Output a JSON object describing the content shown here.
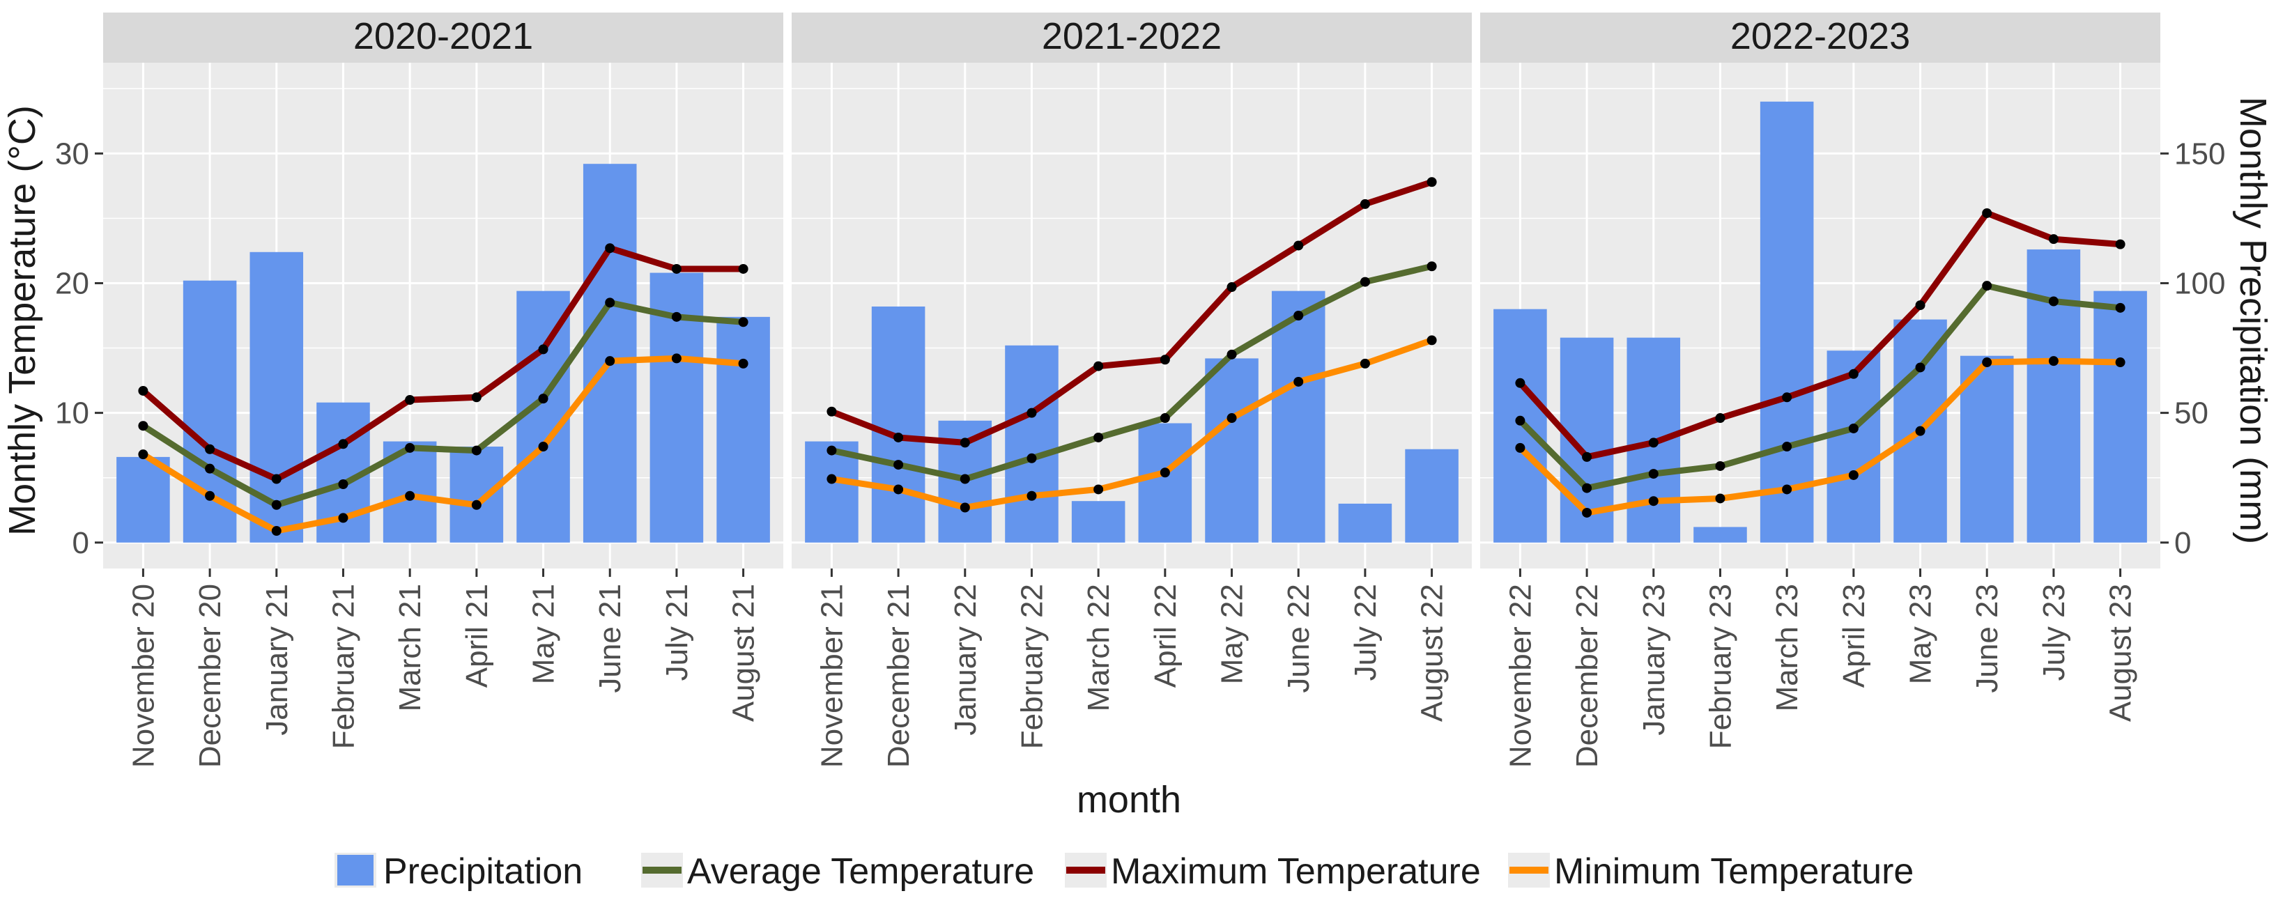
{
  "chart_data": {
    "type": "bar+line",
    "xlabel": "month",
    "ylabel_left": "Monthly Temperature (°C)",
    "ylabel_right": "Monthly Precipitation (mm)",
    "ylim_left": [
      -2,
      37
    ],
    "yticks_left": [
      0,
      10,
      20,
      30
    ],
    "yticks_left_labels": [
      "0",
      "10",
      "20",
      "30"
    ],
    "ylim_right": [
      -10,
      185
    ],
    "yticks_right": [
      0,
      50,
      100,
      150
    ],
    "yticks_right_labels": [
      "0",
      "50",
      "100",
      "150"
    ],
    "grid": true,
    "legend_position": "bottom",
    "series_names": {
      "precipitation": "Precipitation",
      "avg": "Average Temperature",
      "max": "Maximum Temperature",
      "min": "Minimum Temperature"
    },
    "colors": {
      "precipitation": "#6495ed",
      "avg": "#556b2f",
      "max": "#8b0000",
      "min": "#ff8c00",
      "panel_bg": "#ebebeb",
      "strip_bg": "#d9d9d9",
      "grid": "#ffffff",
      "point": "#000000"
    },
    "panels": [
      {
        "title": "2020-2021",
        "months": [
          "November 20",
          "December 20",
          "January 21",
          "February 21",
          "March 21",
          "April 21",
          "May 21",
          "June 21",
          "July 21",
          "August 21"
        ],
        "precipitation": [
          33,
          101,
          112,
          54,
          39,
          37,
          97,
          146,
          104,
          87
        ],
        "max_temperature": [
          11.7,
          7.2,
          4.9,
          7.6,
          11,
          11.2,
          14.9,
          22.7,
          21.1,
          21.1
        ],
        "avg_temperature": [
          9,
          5.7,
          2.9,
          4.5,
          7.3,
          7.1,
          11.1,
          18.5,
          17.4,
          17
        ],
        "min_temperature": [
          6.8,
          3.6,
          0.9,
          1.9,
          3.6,
          2.9,
          7.4,
          14,
          14.2,
          13.8
        ]
      },
      {
        "title": "2021-2022",
        "months": [
          "November 21",
          "December 21",
          "January 22",
          "February 22",
          "March 22",
          "April 22",
          "May 22",
          "June 22",
          "July 22",
          "August 22"
        ],
        "precipitation": [
          39,
          91,
          47,
          76,
          16,
          46,
          71,
          97,
          15,
          36
        ],
        "max_temperature": [
          10.1,
          8.1,
          7.7,
          10,
          13.6,
          14.1,
          19.7,
          22.9,
          26.1,
          27.8
        ],
        "avg_temperature": [
          7.1,
          6,
          4.9,
          6.5,
          8.1,
          9.6,
          14.5,
          17.5,
          20.1,
          21.3
        ],
        "min_temperature": [
          4.9,
          4.1,
          2.7,
          3.6,
          4.1,
          5.4,
          9.6,
          12.4,
          13.8,
          15.6
        ]
      },
      {
        "title": "2022-2023",
        "months": [
          "November 22",
          "December 22",
          "January 23",
          "February 23",
          "March 23",
          "April 23",
          "May 23",
          "June 23",
          "July 23",
          "August 23"
        ],
        "precipitation": [
          90,
          79,
          79,
          6,
          170,
          74,
          86,
          72,
          113,
          97
        ],
        "max_temperature": [
          12.3,
          6.6,
          7.7,
          9.6,
          11.2,
          13,
          18.3,
          25.4,
          23.4,
          23
        ],
        "avg_temperature": [
          9.4,
          4.2,
          5.3,
          5.9,
          7.4,
          8.8,
          13.5,
          19.8,
          18.6,
          18.1
        ],
        "min_temperature": [
          7.3,
          2.3,
          3.2,
          3.4,
          4.1,
          5.2,
          8.6,
          13.9,
          14,
          13.9
        ]
      }
    ]
  }
}
